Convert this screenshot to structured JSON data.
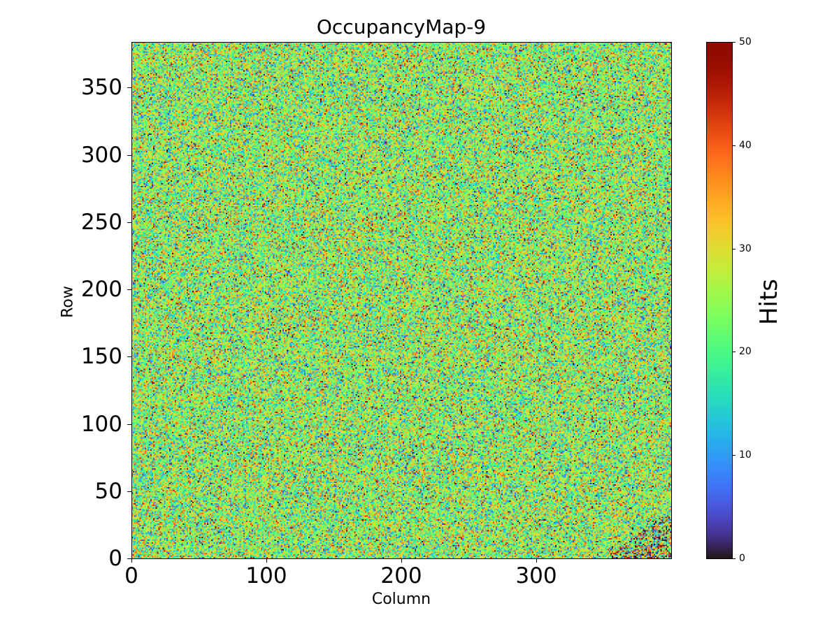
{
  "chart_data": {
    "type": "heatmap",
    "title": "OccupancyMap-9",
    "xlabel": "Column",
    "ylabel": "Row",
    "xlim": [
      0,
      400
    ],
    "ylim": [
      0,
      384
    ],
    "xticks": [
      "0",
      "100",
      "200",
      "300"
    ],
    "yticks": [
      "0",
      "50",
      "100",
      "150",
      "200",
      "250",
      "300",
      "350"
    ],
    "colormap": "turbo",
    "colorbar": {
      "label": "Hits",
      "range": [
        0,
        50
      ],
      "ticks": [
        "0",
        "10",
        "20",
        "30",
        "40",
        "50"
      ]
    },
    "grid": {
      "columns": 400,
      "rows": 384
    },
    "distribution": {
      "mean": 24,
      "std": 9,
      "min": 0,
      "max": 50
    },
    "hotspot": {
      "columns": [
        355,
        400
      ],
      "rows": [
        0,
        32
      ],
      "std": 16
    }
  }
}
